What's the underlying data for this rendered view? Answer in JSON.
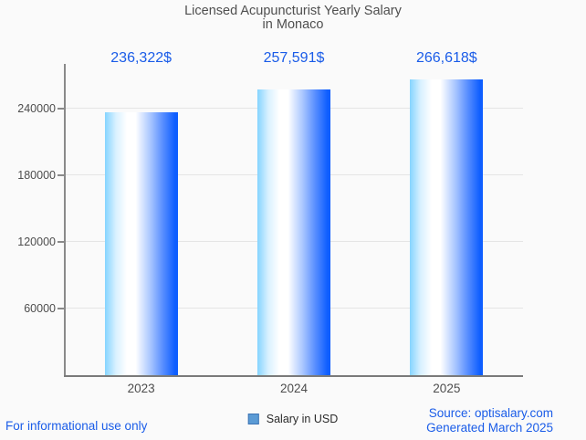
{
  "chart_data": {
    "type": "bar",
    "title": "Licensed Acupuncturist Yearly Salary in Monaco",
    "title_lines": [
      "Licensed Acupuncturist Yearly Salary",
      "in Monaco"
    ],
    "categories": [
      "2023",
      "2024",
      "2025"
    ],
    "values": [
      236322,
      257591,
      266618
    ],
    "value_labels": [
      "236,322$",
      "257,591$",
      "266,618$"
    ],
    "series": [
      {
        "name": "Salary in USD",
        "values": [
          236322,
          257591,
          266618
        ]
      }
    ],
    "xlabel": "",
    "ylabel": "",
    "y_ticks": [
      60000,
      120000,
      180000,
      240000
    ],
    "y_tick_labels": [
      "60000",
      "120000",
      "180000",
      "240000"
    ],
    "ylim": [
      0,
      280000
    ],
    "grid": true,
    "legend_position": "bottom"
  },
  "legend": {
    "label": "Salary in USD"
  },
  "footer": {
    "disclaimer": "For informational use only",
    "source": "Source: optisalary.com",
    "generated": "Generated March 2025"
  },
  "colors": {
    "background": "#fafafa",
    "title_text": "#4f4f4f",
    "axis_text": "#4d4d4d",
    "value_label_text": "#1a5ce8",
    "footer_text": "#1a5ce8",
    "bar_gradient_start": "#85d4ff",
    "bar_gradient_mid": "#ffffff",
    "bar_gradient_end": "#0e5eff",
    "legend_marker_fill": "#5b9bd5",
    "legend_marker_border": "#3e74b4",
    "gridline": "#e5e5e5",
    "axis_line": "#8a8a8a"
  }
}
